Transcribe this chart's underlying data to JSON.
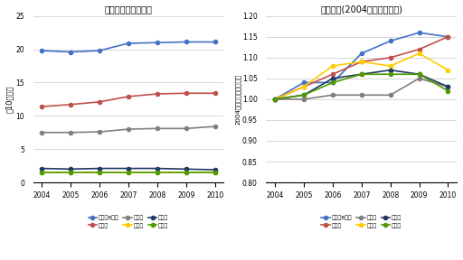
{
  "years": [
    2004,
    2005,
    2006,
    2007,
    2008,
    2009,
    2010
  ],
  "title1": "経常収益（平均値）",
  "title2": "経常収益(2004年基点の比率)",
  "ylabel1": "（10億円）",
  "ylabel2": "2004年を基点とする比率",
  "series_labels": [
    "大規横8大学",
    "医有大",
    "医有中",
    "医無理",
    "医無総",
    "医無文"
  ],
  "colors": [
    "#4472C4",
    "#C0504D",
    "#808080",
    "#FFCC00",
    "#1F3864",
    "#4E9A00"
  ],
  "left_data": {
    "大規横8大学": [
      19.8,
      19.6,
      19.8,
      20.9,
      21.0,
      21.1,
      21.1
    ],
    "医有大": [
      11.4,
      11.7,
      12.1,
      12.9,
      13.3,
      13.4,
      13.4
    ],
    "医有中": [
      7.5,
      7.5,
      7.6,
      8.0,
      8.1,
      8.1,
      8.4
    ],
    "医無理": [
      1.5,
      1.5,
      1.5,
      1.5,
      1.5,
      1.5,
      1.5
    ],
    "医無総": [
      2.1,
      2.0,
      2.1,
      2.1,
      2.1,
      2.0,
      1.9
    ],
    "医無文": [
      1.5,
      1.5,
      1.5,
      1.5,
      1.5,
      1.5,
      1.5
    ]
  },
  "right_data": {
    "大規横8大学": [
      1.0,
      1.04,
      1.04,
      1.11,
      1.14,
      1.16,
      1.15
    ],
    "医有大": [
      1.0,
      1.03,
      1.06,
      1.09,
      1.1,
      1.12,
      1.15
    ],
    "医有中": [
      1.0,
      1.0,
      1.01,
      1.01,
      1.01,
      1.05,
      1.03
    ],
    "医無理": [
      1.0,
      1.03,
      1.08,
      1.09,
      1.08,
      1.11,
      1.07
    ],
    "医無総": [
      1.0,
      1.01,
      1.05,
      1.06,
      1.07,
      1.06,
      1.03
    ],
    "医無文": [
      1.0,
      1.01,
      1.04,
      1.06,
      1.06,
      1.06,
      1.02
    ]
  },
  "ylim1": [
    0,
    25
  ],
  "ylim2": [
    0.8,
    1.2
  ],
  "yticks1": [
    0,
    5,
    10,
    15,
    20,
    25
  ],
  "yticks2": [
    0.8,
    0.85,
    0.9,
    0.95,
    1.0,
    1.05,
    1.1,
    1.15,
    1.2
  ],
  "background": "#FFFFFF"
}
